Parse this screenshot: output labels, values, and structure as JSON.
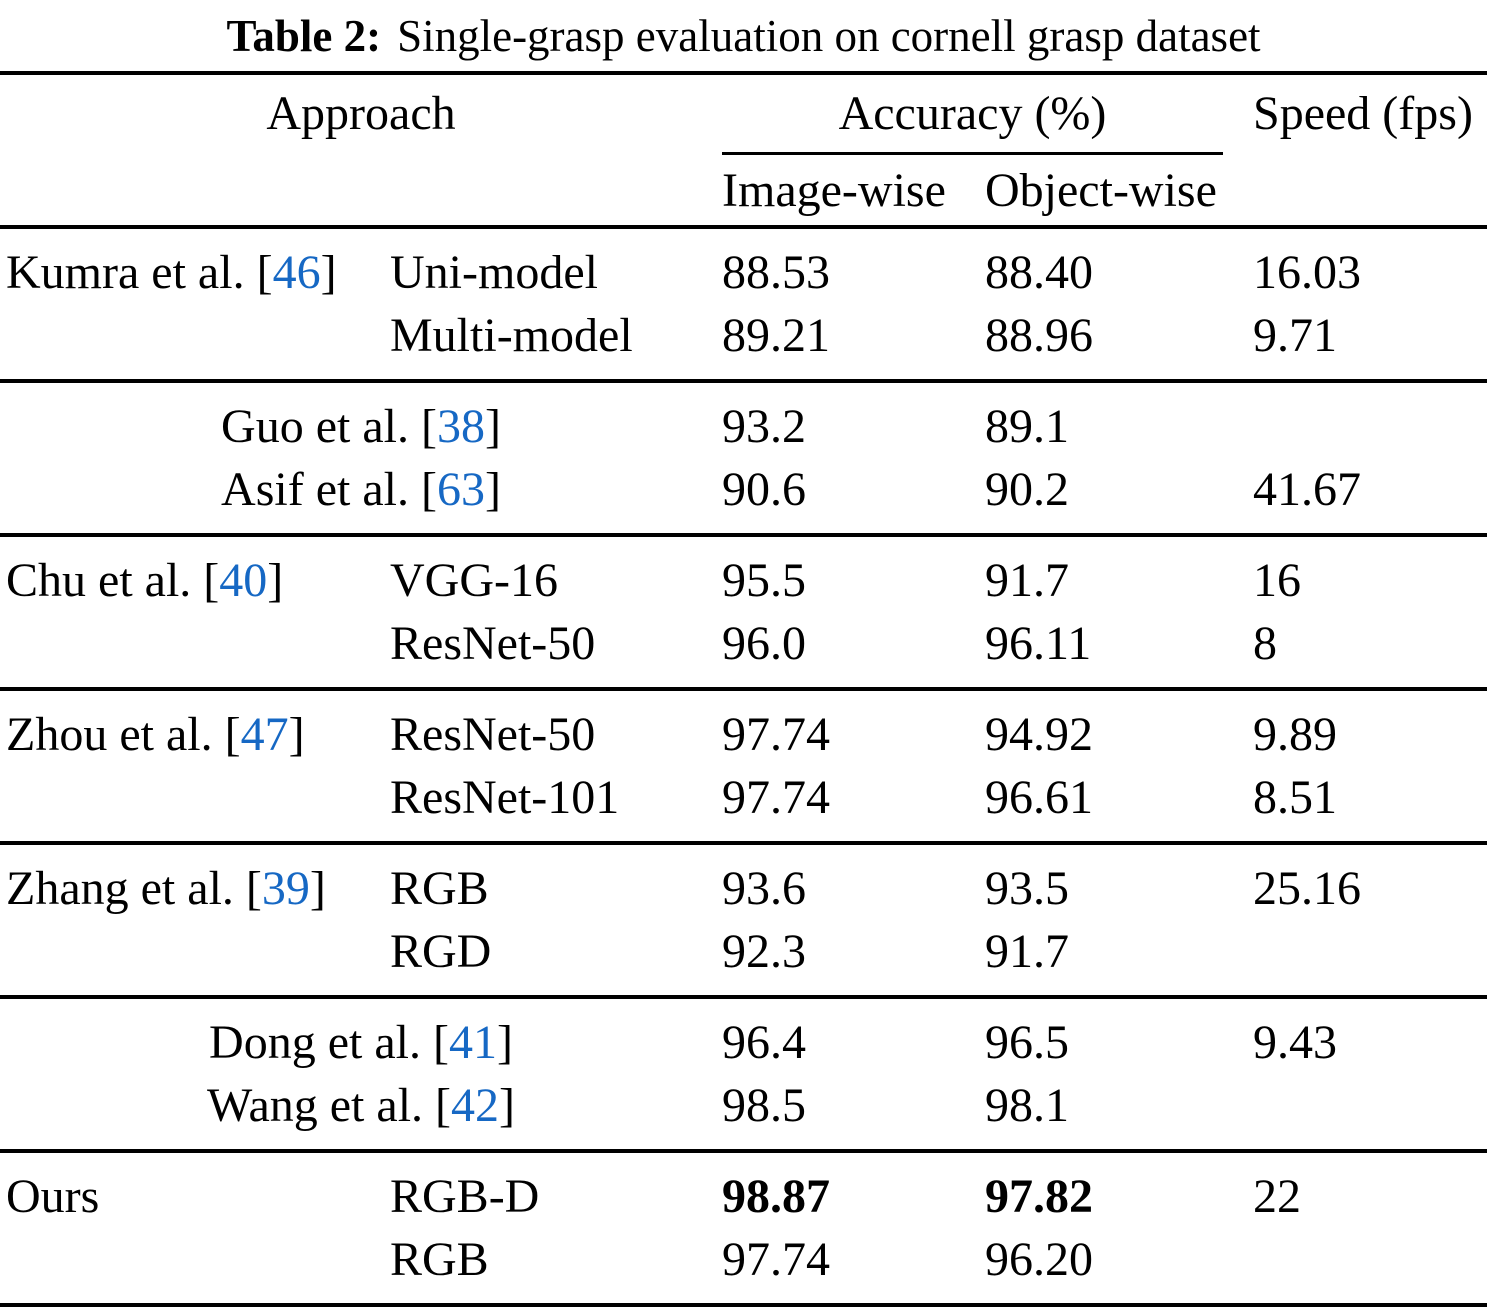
{
  "title": {
    "label": "Table 2:",
    "caption": "Single-grasp evaluation on cornell grasp dataset"
  },
  "punct": {
    "open_bracket": "[",
    "close_bracket": "]"
  },
  "colors": {
    "citation_link": "#1668c4",
    "text": "#000000",
    "background": "#ffffff",
    "rule": "#000000"
  },
  "header": {
    "approach": "Approach",
    "accuracy": "Accuracy (%)",
    "speed": "Speed (fps)",
    "image_wise": "Image-wise",
    "object_wise": "Object-wise"
  },
  "sections": [
    {
      "rows": [
        {
          "author": "Kumra et al.",
          "cite": "46",
          "variant": "Uni-model",
          "image": "88.53",
          "object": "88.40",
          "speed": "16.03"
        },
        {
          "author": "",
          "variant": "Multi-model",
          "image": "89.21",
          "object": "88.96",
          "speed": "9.71"
        }
      ]
    },
    {
      "rows": [
        {
          "author": "Guo et al.",
          "cite": "38",
          "image": "93.2",
          "object": "89.1",
          "speed": ""
        },
        {
          "author": "Asif et al.",
          "cite": "63",
          "image": "90.6",
          "object": "90.2",
          "speed": "41.67"
        }
      ]
    },
    {
      "rows": [
        {
          "author": "Chu et al.",
          "cite": "40",
          "variant": "VGG-16",
          "image": "95.5",
          "object": "91.7",
          "speed": "16"
        },
        {
          "author": "",
          "variant": "ResNet-50",
          "image": "96.0",
          "object": "96.11",
          "speed": "8"
        }
      ]
    },
    {
      "rows": [
        {
          "author": "Zhou et al.",
          "cite": "47",
          "variant": "ResNet-50",
          "image": "97.74",
          "object": "94.92",
          "speed": "9.89"
        },
        {
          "author": "",
          "variant": "ResNet-101",
          "image": "97.74",
          "object": "96.61",
          "speed": "8.51"
        }
      ]
    },
    {
      "rows": [
        {
          "author": "Zhang et al.",
          "cite": "39",
          "variant": "RGB",
          "image": "93.6",
          "object": "93.5",
          "speed": "25.16"
        },
        {
          "author": "",
          "variant": "RGD",
          "image": "92.3",
          "object": "91.7",
          "speed": ""
        }
      ]
    },
    {
      "rows": [
        {
          "author": "Dong et al.",
          "cite": "41",
          "image": "96.4",
          "object": "96.5",
          "speed": "9.43"
        },
        {
          "author": "Wang et al.",
          "cite": "42",
          "image": "98.5",
          "object": "98.1",
          "speed": ""
        }
      ]
    },
    {
      "rows": [
        {
          "author": "Ours",
          "variant": "RGB-D",
          "image": "98.87",
          "object": "97.82",
          "speed": "22"
        },
        {
          "author": "",
          "variant": "RGB",
          "image": "97.74",
          "object": "96.20",
          "speed": ""
        }
      ]
    }
  ]
}
